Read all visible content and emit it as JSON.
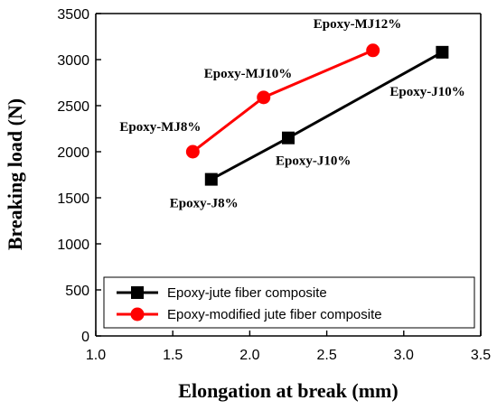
{
  "chart_data": {
    "type": "line",
    "xlabel": "Elongation at break (mm)",
    "ylabel": "Breaking load (N)",
    "xlim": [
      1.0,
      3.5
    ],
    "ylim": [
      0,
      3500
    ],
    "x_ticks": [
      "1.0",
      "1.5",
      "2.0",
      "2.5",
      "3.0",
      "3.5"
    ],
    "y_ticks": [
      "0",
      "500",
      "1000",
      "1500",
      "2000",
      "2500",
      "3000",
      "3500"
    ],
    "grid": false,
    "legend_position": "bottom",
    "series": [
      {
        "name": "Epoxy-jute fiber composite",
        "color": "#000000",
        "marker": "square",
        "x": [
          1.75,
          2.25,
          3.25
        ],
        "y": [
          1700,
          2150,
          3080
        ],
        "labels": [
          "Epoxy-J8%",
          "Epoxy-J10%",
          "Epoxy-J10%"
        ]
      },
      {
        "name": "Epoxy-modified jute fiber composite",
        "color": "#ff0000",
        "marker": "circle",
        "x": [
          1.63,
          2.09,
          2.8
        ],
        "y": [
          2000,
          2590,
          3100
        ],
        "labels": [
          "Epoxy-MJ8%",
          "Epoxy-MJ10%",
          "Epoxy-MJ12%"
        ]
      }
    ]
  }
}
